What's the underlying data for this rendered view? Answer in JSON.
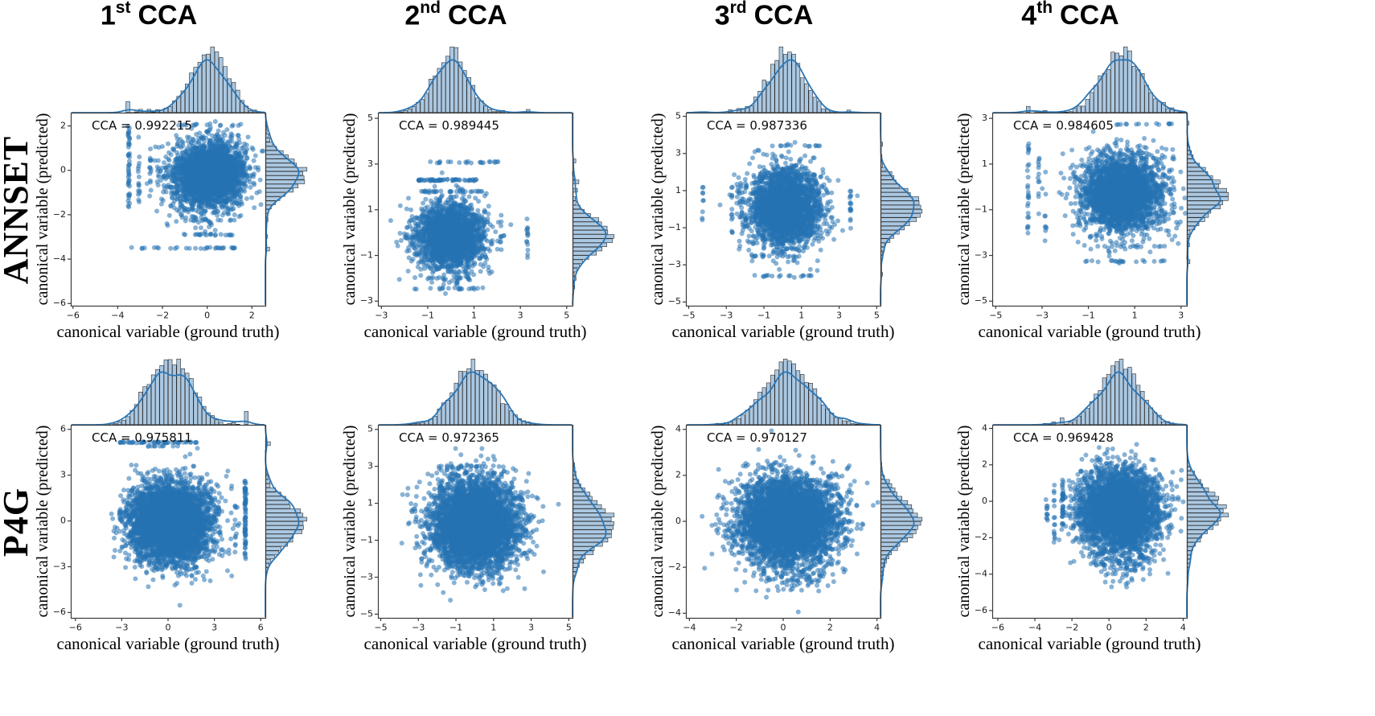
{
  "figure": {
    "rows": [
      {
        "label": "ANNSET"
      },
      {
        "label": "P4G"
      }
    ],
    "columns": [
      {
        "num": "1",
        "ord": "st",
        "rest": "CCA"
      },
      {
        "num": "2",
        "ord": "nd",
        "rest": "CCA"
      },
      {
        "num": "3",
        "ord": "rd",
        "rest": "CCA"
      },
      {
        "num": "4",
        "ord": "th",
        "rest": "CCA"
      }
    ],
    "axis": {
      "xlabel": "canonical variable (ground truth)",
      "ylabel": "canonical variable (predicted)"
    },
    "colors": {
      "point": "#2672b2",
      "point_alpha": 0.55,
      "hist_fill": "#abc8e2",
      "hist_edge": "#2f2f2f",
      "kde": "#2a76b5",
      "spine": "#3a3a3a",
      "tick_text": "#1a1a1a"
    },
    "marginals": "histogram+kde"
  },
  "chart_data": [
    {
      "type": "scatter",
      "row": "ANNSET",
      "column": "1st CCA",
      "annotation": "CCA = 0.992215",
      "cca": 0.992215,
      "xlim": [
        -6.1,
        2.6
      ],
      "ylim": [
        -6.1,
        2.6
      ],
      "xticks": [
        -6,
        -4,
        -2,
        0,
        2
      ],
      "yticks": [
        2,
        0,
        -2,
        -4,
        -6
      ],
      "clusters": [
        {
          "n": 1400,
          "cx": -0.3,
          "cy": -0.25,
          "sx": 0.75,
          "sy": 0.78
        },
        {
          "n": 1300,
          "cx": 0.55,
          "cy": -0.15,
          "sx": 0.62,
          "sy": 0.72
        }
      ],
      "vstripes": [
        {
          "x": -3.5,
          "n": 45,
          "y0": -1.7,
          "y1": 2.1
        },
        {
          "x": -3.05,
          "n": 16,
          "y0": -1.5,
          "y1": 1.5
        },
        {
          "x": -2.55,
          "n": 12,
          "y0": -1.2,
          "y1": 0.9
        },
        {
          "x": -2.2,
          "n": 6,
          "y0": -0.5,
          "y1": 0.6
        }
      ],
      "hstripes": [
        {
          "y": -3.5,
          "n": 30,
          "x0": -3.5,
          "x1": 1.4
        },
        {
          "y": -2.9,
          "n": 20,
          "x0": -1.2,
          "x1": 1.3
        },
        {
          "y": -2.25,
          "n": 12,
          "x0": -0.8,
          "x1": 1.5
        },
        {
          "y": 2.05,
          "n": 14,
          "x0": -1.5,
          "x1": 1.9
        }
      ]
    },
    {
      "type": "scatter",
      "row": "ANNSET",
      "column": "2nd CCA",
      "annotation": "CCA = 0.989445",
      "cca": 0.989445,
      "xlim": [
        -3.15,
        5.25
      ],
      "ylim": [
        -3.2,
        5.25
      ],
      "xticks": [
        -3,
        -1,
        1,
        3,
        5
      ],
      "yticks": [
        5,
        3,
        1,
        -1,
        -3
      ],
      "clusters": [
        {
          "n": 2400,
          "cx": 0.0,
          "cy": -0.15,
          "sx": 0.72,
          "sy": 0.7
        }
      ],
      "vstripes": [
        {
          "x": 3.3,
          "n": 14,
          "y0": -1.2,
          "y1": 0.7
        },
        {
          "x": 2.15,
          "n": 8,
          "y0": -0.5,
          "y1": 0.8
        }
      ],
      "hstripes": [
        {
          "y": 2.3,
          "n": 55,
          "x0": -1.4,
          "x1": 1.1
        },
        {
          "y": 3.08,
          "n": 22,
          "x0": -0.9,
          "x1": 2.3
        },
        {
          "y": -2.45,
          "n": 20,
          "x0": -1.6,
          "x1": 1.5
        },
        {
          "y": 1.8,
          "n": 28,
          "x0": -1.3,
          "x1": 1.3
        },
        {
          "y": -2.0,
          "n": 14,
          "x0": -1.9,
          "x1": 0.9
        }
      ]
    },
    {
      "type": "scatter",
      "row": "ANNSET",
      "column": "3rd CCA",
      "annotation": "CCA = 0.987336",
      "cca": 0.987336,
      "xlim": [
        -5.15,
        5.2
      ],
      "ylim": [
        -5.2,
        5.2
      ],
      "xticks": [
        -5,
        -3,
        -1,
        1,
        3,
        5
      ],
      "yticks": [
        5,
        3,
        1,
        -1,
        -3,
        -5
      ],
      "clusters": [
        {
          "n": 2800,
          "cx": 0.1,
          "cy": 0.1,
          "sx": 0.95,
          "sy": 1.0
        }
      ],
      "vstripes": [
        {
          "x": -4.25,
          "n": 9,
          "y0": -1.3,
          "y1": 1.2
        },
        {
          "x": 3.6,
          "n": 16,
          "y0": -1.1,
          "y1": 1.3
        },
        {
          "x": -2.7,
          "n": 12,
          "y0": -1.7,
          "y1": 1.3
        }
      ],
      "hstripes": [
        {
          "y": -3.6,
          "n": 17,
          "x0": -1.6,
          "x1": 1.6
        },
        {
          "y": 3.42,
          "n": 13,
          "x0": -0.7,
          "x1": 2.1
        },
        {
          "y": -2.55,
          "n": 14,
          "x0": -1.9,
          "x1": 1.1
        }
      ]
    },
    {
      "type": "scatter",
      "row": "ANNSET",
      "column": "4th CCA",
      "annotation": "CCA = 0.984605",
      "cca": 0.984605,
      "xlim": [
        -5.15,
        3.25
      ],
      "ylim": [
        -5.2,
        3.25
      ],
      "xticks": [
        -5,
        -3,
        -1,
        1,
        3
      ],
      "yticks": [
        3,
        1,
        -1,
        -3,
        -5
      ],
      "clusters": [
        {
          "n": 2900,
          "cx": 0.45,
          "cy": -0.3,
          "sx": 0.85,
          "sy": 0.82
        }
      ],
      "vstripes": [
        {
          "x": -3.6,
          "n": 26,
          "y0": -2.3,
          "y1": 2.0
        },
        {
          "x": -3.15,
          "n": 12,
          "y0": -1.4,
          "y1": 1.3
        },
        {
          "x": -2.85,
          "n": 9,
          "y0": -2.6,
          "y1": 0.8
        }
      ],
      "hstripes": [
        {
          "y": -3.25,
          "n": 20,
          "x0": -1.2,
          "x1": 2.6
        },
        {
          "y": -2.6,
          "n": 13,
          "x0": -0.6,
          "x1": 2.3
        },
        {
          "y": 2.75,
          "n": 14,
          "x0": 0.2,
          "x1": 2.9
        }
      ]
    },
    {
      "type": "scatter",
      "row": "P4G",
      "column": "1st CCA",
      "annotation": "CCA = 0.975811",
      "cca": 0.975811,
      "xlim": [
        -6.3,
        6.3
      ],
      "ylim": [
        -6.35,
        6.3
      ],
      "xticks": [
        -6,
        -3,
        0,
        3,
        6
      ],
      "yticks": [
        6,
        3,
        0,
        -3,
        -6
      ],
      "clusters": [
        {
          "n": 1900,
          "cx": -0.75,
          "cy": 0.0,
          "sx": 1.0,
          "sy": 1.25
        },
        {
          "n": 2500,
          "cx": 0.85,
          "cy": -0.2,
          "sx": 1.1,
          "sy": 1.3
        }
      ],
      "vstripes": [
        {
          "x": 5.0,
          "n": 70,
          "y0": -2.6,
          "y1": 2.7
        },
        {
          "x": 4.35,
          "n": 10,
          "y0": -2.2,
          "y1": 1.4
        }
      ],
      "hstripes": [
        {
          "y": 5.15,
          "n": 50,
          "x0": -3.2,
          "x1": 1.9
        },
        {
          "y": 4.9,
          "n": 10,
          "x0": -1.6,
          "x1": 1.0
        }
      ]
    },
    {
      "type": "scatter",
      "row": "P4G",
      "column": "2nd CCA",
      "annotation": "CCA = 0.972365",
      "cca": 0.972365,
      "xlim": [
        -5.15,
        5.2
      ],
      "ylim": [
        -5.2,
        5.25
      ],
      "xticks": [
        -5,
        -3,
        -1,
        1,
        3,
        5
      ],
      "yticks": [
        5,
        3,
        1,
        -1,
        -3,
        -5
      ],
      "clusters": [
        {
          "n": 4600,
          "cx": 0.0,
          "cy": -0.15,
          "sx": 1.12,
          "sy": 1.18
        }
      ],
      "vstripes": [],
      "hstripes": [
        {
          "y": 3.0,
          "n": 16,
          "x0": -1.6,
          "x1": 1.6
        }
      ]
    },
    {
      "type": "scatter",
      "row": "P4G",
      "column": "3rd CCA",
      "annotation": "CCA = 0.970127",
      "cca": 0.970127,
      "xlim": [
        -4.15,
        4.15
      ],
      "ylim": [
        -4.2,
        4.2
      ],
      "xticks": [
        -4,
        -2,
        0,
        2,
        4
      ],
      "yticks": [
        4,
        2,
        0,
        -2,
        -4
      ],
      "clusters": [
        {
          "n": 4800,
          "cx": 0.2,
          "cy": 0.05,
          "sx": 1.02,
          "sy": 0.92
        },
        {
          "n": 70,
          "cx": 0.4,
          "cy": -2.4,
          "sx": 0.85,
          "sy": 0.33
        }
      ],
      "vstripes": [],
      "hstripes": []
    },
    {
      "type": "scatter",
      "row": "P4G",
      "column": "4th CCA",
      "annotation": "CCA = 0.969428",
      "cca": 0.969428,
      "xlim": [
        -6.3,
        4.2
      ],
      "ylim": [
        -6.4,
        4.2
      ],
      "xticks": [
        -6,
        -4,
        -2,
        0,
        2,
        4
      ],
      "yticks": [
        4,
        2,
        0,
        -2,
        -4,
        -6
      ],
      "clusters": [
        {
          "n": 3800,
          "cx": 0.55,
          "cy": -0.5,
          "sx": 1.05,
          "sy": 1.1
        },
        {
          "n": 90,
          "cx": 0.9,
          "cy": -3.4,
          "sx": 0.95,
          "sy": 0.45
        }
      ],
      "vstripes": [
        {
          "x": -2.5,
          "n": 34,
          "y0": -1.7,
          "y1": 1.2
        },
        {
          "x": -2.95,
          "n": 16,
          "y0": -2.3,
          "y1": 0.9
        },
        {
          "x": -3.35,
          "n": 9,
          "y0": -1.3,
          "y1": 0.4
        },
        {
          "x": 2.6,
          "n": 18,
          "y0": -1.6,
          "y1": 1.1
        }
      ],
      "hstripes": []
    }
  ]
}
